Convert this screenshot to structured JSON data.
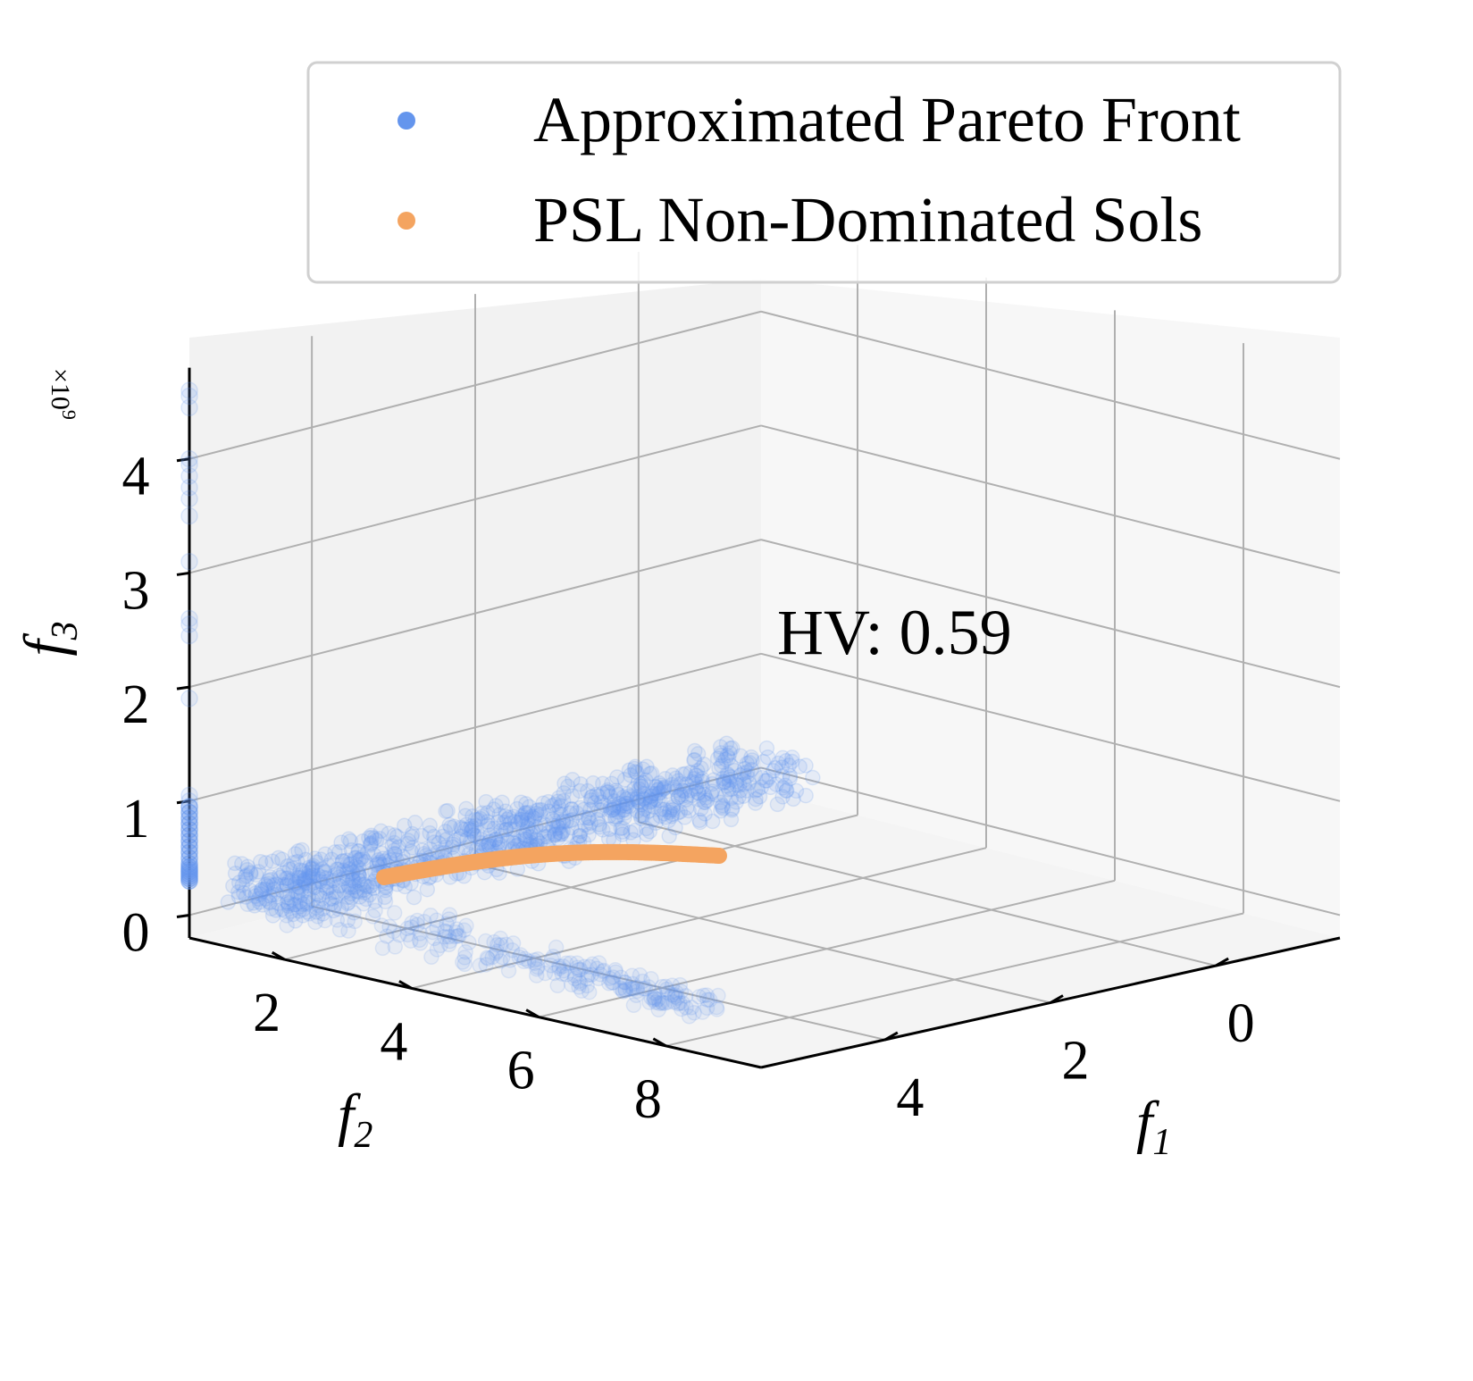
{
  "chart_data": {
    "type": "scatter",
    "projection": "3d",
    "annotation": "HV: 0.59",
    "axes": {
      "f1": {
        "label": "f",
        "label_sub": "1",
        "ticks": [
          "0",
          "2",
          "4"
        ],
        "range": [
          -1.5,
          5.5
        ]
      },
      "f2": {
        "label": "f",
        "label_sub": "2",
        "ticks": [
          "2",
          "4",
          "6",
          "8"
        ],
        "range": [
          0.5,
          9.5
        ]
      },
      "f3": {
        "label": "f",
        "label_sub": "3",
        "ticks": [
          "0",
          "1",
          "2",
          "3",
          "4"
        ],
        "range": [
          -0.2,
          4.8
        ],
        "scale_text": "×10",
        "scale_exp": "9"
      }
    },
    "grid": true,
    "legend_position": "top-right",
    "series": [
      {
        "name": "Approximated Pareto Front",
        "color": "#6495ed",
        "marker": "o",
        "alpha": 0.15,
        "description_points": {
          "spike": {
            "f1": 0,
            "f2": 0,
            "f3_values": [
              4.6,
              4.55,
              4.45,
              4.0,
              3.95,
              3.85,
              3.75,
              3.65,
              3.5,
              3.1,
              2.6,
              2.55,
              2.45,
              1.9,
              1.05,
              1.0,
              0.95,
              0.9,
              0.85,
              0.8,
              0.75,
              0.7,
              0.65,
              0.6,
              0.55,
              0.5,
              0.45,
              0.42,
              0.4,
              0.38,
              0.36,
              0.34,
              0.32,
              0.3
            ]
          },
          "front_f1_end": 4.4,
          "front_f2_end": 8.3
        }
      },
      {
        "name": "PSL Non-Dominated Sols",
        "color": "#f4a460",
        "marker": "o",
        "alpha": 1.0,
        "curve": {
          "f1_range": [
            0.6,
            5.2
          ],
          "f2_range": [
            0.7,
            1.0
          ],
          "f3": 0.0
        }
      }
    ]
  }
}
